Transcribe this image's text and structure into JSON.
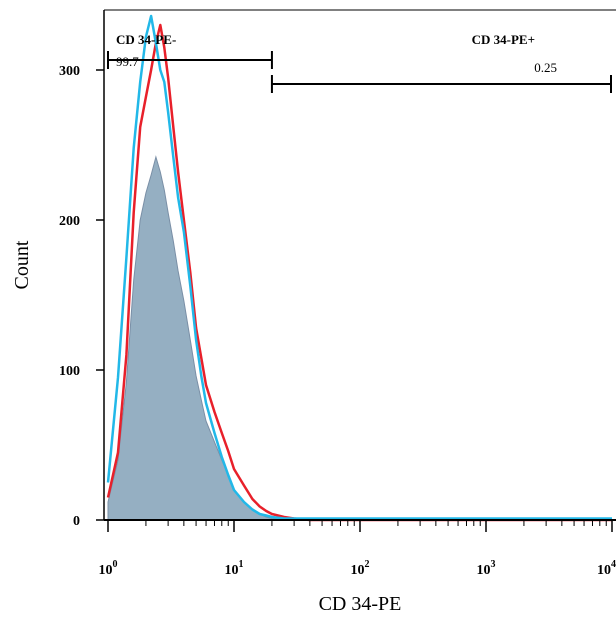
{
  "chart_data": {
    "type": "histogram",
    "xlabel": "CD 34-PE",
    "ylabel": "Count",
    "x_scale": "log",
    "xlim": [
      1,
      10000
    ],
    "ylim": [
      0,
      340
    ],
    "x_ticks": [
      {
        "value": 1,
        "base": "10",
        "exp": "0"
      },
      {
        "value": 10,
        "base": "10",
        "exp": "1"
      },
      {
        "value": 100,
        "base": "10",
        "exp": "2"
      },
      {
        "value": 1000,
        "base": "10",
        "exp": "3"
      },
      {
        "value": 10000,
        "base": "10",
        "exp": "4"
      }
    ],
    "y_ticks": [
      0,
      100,
      200,
      300
    ],
    "grid": false,
    "gates": [
      {
        "label": "CD 34-PE-",
        "value": "99.7",
        "x_range": [
          1,
          20
        ]
      },
      {
        "label": "CD 34-PE+",
        "value": "0.25",
        "x_range": [
          20,
          10000
        ]
      }
    ],
    "series": [
      {
        "color": "#e8202a",
        "style": "outline",
        "x": [
          1,
          1.2,
          1.4,
          1.6,
          1.8,
          2,
          2.2,
          2.4,
          2.6,
          2.8,
          3,
          3.3,
          3.6,
          4,
          4.5,
          5,
          5.5,
          6,
          7,
          8,
          9,
          10,
          12,
          14,
          16,
          18,
          20,
          25,
          30,
          40,
          60,
          100,
          1000,
          10000
        ],
        "y": [
          15,
          45,
          110,
          205,
          262,
          282,
          300,
          318,
          330,
          315,
          295,
          262,
          232,
          200,
          165,
          128,
          108,
          90,
          72,
          58,
          46,
          34,
          23,
          14,
          9,
          6,
          4,
          2,
          1,
          0,
          0,
          0,
          0,
          0
        ]
      },
      {
        "color": "#22b8e8",
        "style": "outline",
        "x": [
          1,
          1.2,
          1.4,
          1.6,
          1.8,
          2,
          2.2,
          2.4,
          2.6,
          2.8,
          3,
          3.3,
          3.6,
          4,
          4.5,
          5,
          5.5,
          6,
          7,
          8,
          9,
          10,
          12,
          14,
          16,
          18,
          20,
          25,
          30,
          40,
          60,
          100,
          1000,
          10000
        ],
        "y": [
          25,
          95,
          175,
          248,
          292,
          322,
          336,
          318,
          300,
          292,
          272,
          242,
          215,
          192,
          156,
          120,
          96,
          78,
          58,
          42,
          30,
          20,
          12,
          7,
          4,
          3,
          2,
          1,
          1,
          1,
          1,
          1,
          1,
          1
        ]
      },
      {
        "color": "#8aa6bb",
        "style": "filled",
        "x": [
          1,
          1.2,
          1.4,
          1.6,
          1.8,
          2,
          2.2,
          2.4,
          2.6,
          2.8,
          3,
          3.3,
          3.6,
          4,
          4.5,
          5,
          5.5,
          6,
          7,
          8,
          9,
          10,
          12,
          14,
          16,
          18,
          20,
          25,
          30,
          40,
          60,
          100,
          1000,
          10000
        ],
        "y": [
          12,
          40,
          92,
          160,
          200,
          218,
          230,
          242,
          232,
          220,
          205,
          186,
          166,
          146,
          120,
          96,
          80,
          66,
          52,
          40,
          30,
          20,
          12,
          7,
          4,
          2,
          1,
          0,
          0,
          0,
          0,
          0,
          0,
          0
        ]
      }
    ]
  }
}
